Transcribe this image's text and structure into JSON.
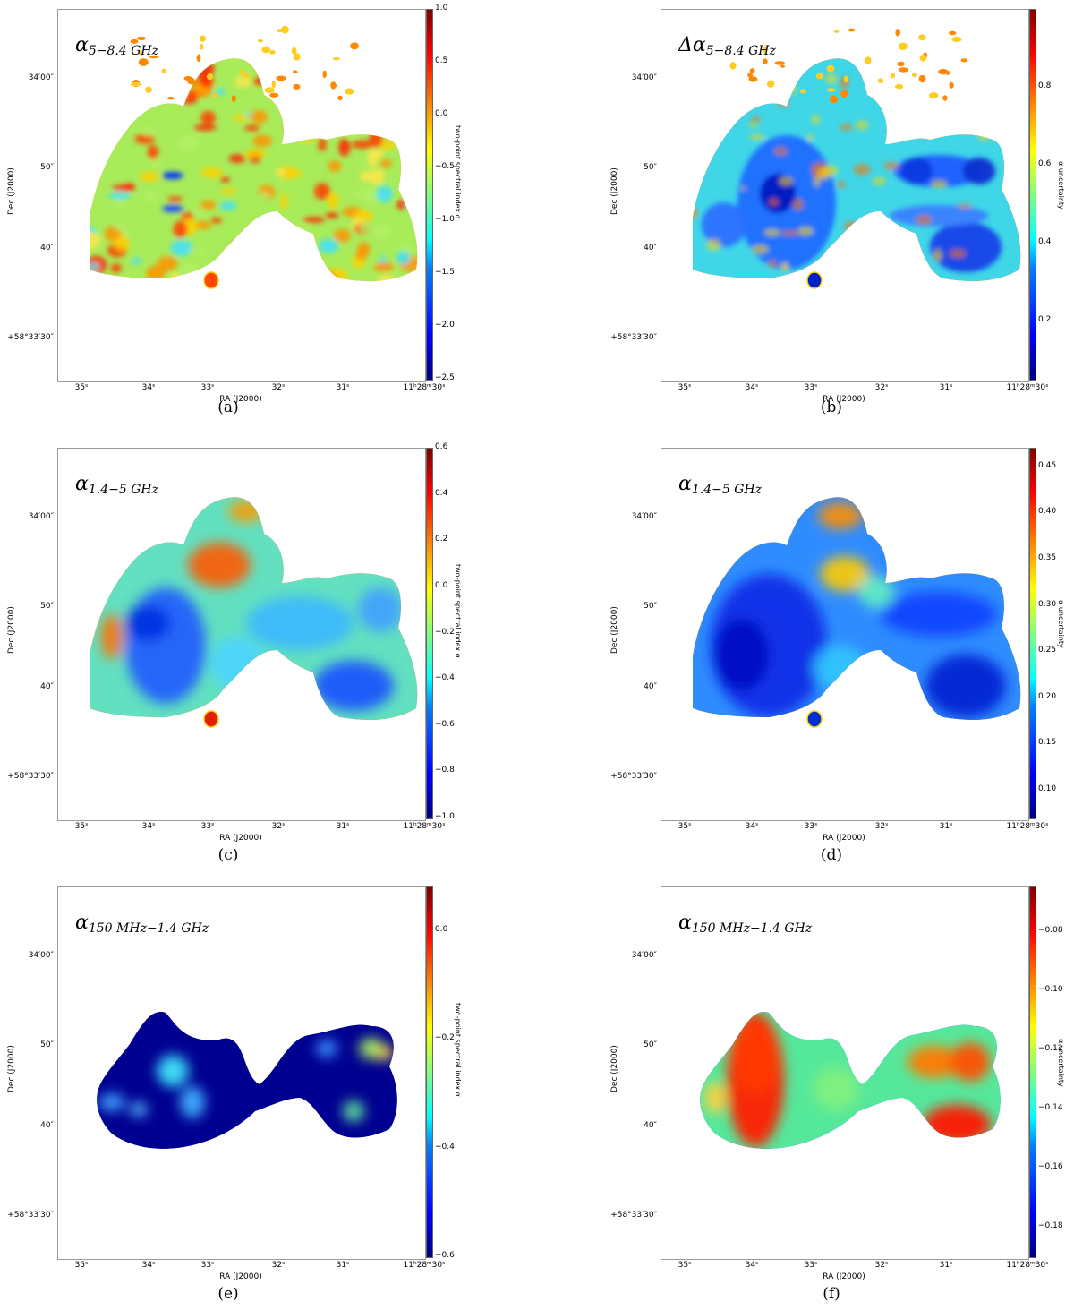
{
  "chart_data": [
    {
      "type": "heatmap",
      "panel": "(a)",
      "title_main": "α",
      "title_sub": "5−8.4 GHz",
      "xlabel": "RA (J2000)",
      "ylabel": "Dec (J2000)",
      "xticks": [
        "35ˢ",
        "34ˢ",
        "33ˢ",
        "32ˢ",
        "31ˢ",
        "11ʰ28ᵐ30ˢ"
      ],
      "yticks": [
        "34′00″",
        "50″",
        "40″",
        "+58°33′30″"
      ],
      "colorbar_label": "two-point spectral index α",
      "colorbar_ticks": [
        "1.0",
        "0.5",
        "0.0",
        "−0.5",
        "−1.0",
        "−1.5",
        "−2.0",
        "−2.5"
      ],
      "colorbar_range": [
        -2.5,
        1.0
      ],
      "colormap": "jet",
      "map_style": "noisy"
    },
    {
      "type": "heatmap",
      "panel": "(b)",
      "title_main": "Δα",
      "title_sub": "5−8.4 GHz",
      "xlabel": "RA (J2000)",
      "ylabel": "Dec (J2000)",
      "xticks": [
        "35ˢ",
        "34ˢ",
        "33ˢ",
        "32ˢ",
        "31ˢ",
        "11ʰ28ᵐ30ˢ"
      ],
      "yticks": [
        "34′00″",
        "50″",
        "40″",
        "+58°33′30″"
      ],
      "colorbar_label": "α uncertainty",
      "colorbar_ticks": [
        "0.8",
        "0.6",
        "0.4",
        "0.2"
      ],
      "colorbar_range": [
        0.05,
        1.0
      ],
      "colormap": "jet",
      "map_style": "uncertainty-noisy"
    },
    {
      "type": "heatmap",
      "panel": "(c)",
      "title_main": "α",
      "title_sub": "1.4−5 GHz",
      "xlabel": "RA (J2000)",
      "ylabel": "Dec (J2000)",
      "xticks": [
        "35ˢ",
        "34ˢ",
        "33ˢ",
        "32ˢ",
        "31ˢ",
        "11ʰ28ᵐ30ˢ"
      ],
      "yticks": [
        "34′00″",
        "50″",
        "40″",
        "+58°33′30″"
      ],
      "colorbar_label": "two-point spectral index α",
      "colorbar_ticks": [
        "0.6",
        "0.4",
        "0.2",
        "0.0",
        "−0.2",
        "−0.4",
        "−0.6",
        "−0.8",
        "−1.0"
      ],
      "colorbar_range": [
        -1.0,
        0.6
      ],
      "colormap": "jet",
      "map_style": "smooth"
    },
    {
      "type": "heatmap",
      "panel": "(d)",
      "title_main": "α",
      "title_sub": "1.4−5 GHz",
      "xlabel": "RA (J2000)",
      "ylabel": "Dec (J2000)",
      "xticks": [
        "35ˢ",
        "34ˢ",
        "33ˢ",
        "32ˢ",
        "31ˢ",
        "11ʰ28ᵐ30ˢ"
      ],
      "yticks": [
        "34′00″",
        "50″",
        "40″",
        "+58°33′30″"
      ],
      "colorbar_label": "α uncertainty",
      "colorbar_ticks": [
        "0.45",
        "0.40",
        "0.35",
        "0.30",
        "0.25",
        "0.20",
        "0.15",
        "0.10"
      ],
      "colorbar_range": [
        0.07,
        0.47
      ],
      "colormap": "jet",
      "map_style": "uncertainty-smooth"
    },
    {
      "type": "heatmap",
      "panel": "(e)",
      "title_main": "α",
      "title_sub": "150 MHz−1.4 GHz",
      "xlabel": "RA (J2000)",
      "ylabel": "Dec (J2000)",
      "xticks": [
        "35ˢ",
        "34ˢ",
        "33ˢ",
        "32ˢ",
        "31ˢ",
        "11ʰ28ᵐ30ˢ"
      ],
      "yticks": [
        "34′00″",
        "50″",
        "40″",
        "+58°33′30″"
      ],
      "colorbar_label": "two-point spectral index α",
      "colorbar_ticks": [
        "0.0",
        "−0.2",
        "−0.4",
        "−0.6"
      ],
      "colorbar_range": [
        -0.6,
        0.08
      ],
      "colormap": "jet",
      "map_style": "low-dark"
    },
    {
      "type": "heatmap",
      "panel": "(f)",
      "title_main": "α",
      "title_sub": "150 MHz−1.4 GHz",
      "xlabel": "RA (J2000)",
      "ylabel": "Dec (J2000)",
      "xticks": [
        "35ˢ",
        "34ˢ",
        "33ˢ",
        "32ˢ",
        "31ˢ",
        "11ʰ28ᵐ30ˢ"
      ],
      "yticks": [
        "34′00″",
        "50″",
        "40″",
        "+58°33′30″"
      ],
      "colorbar_label": "α uncertainty",
      "colorbar_ticks": [
        "−0.08",
        "−0.10",
        "−0.12",
        "−0.14",
        "−0.16",
        "−0.18"
      ],
      "colorbar_range": [
        -0.19,
        -0.065
      ],
      "colormap": "jet",
      "map_style": "low-warm"
    }
  ]
}
